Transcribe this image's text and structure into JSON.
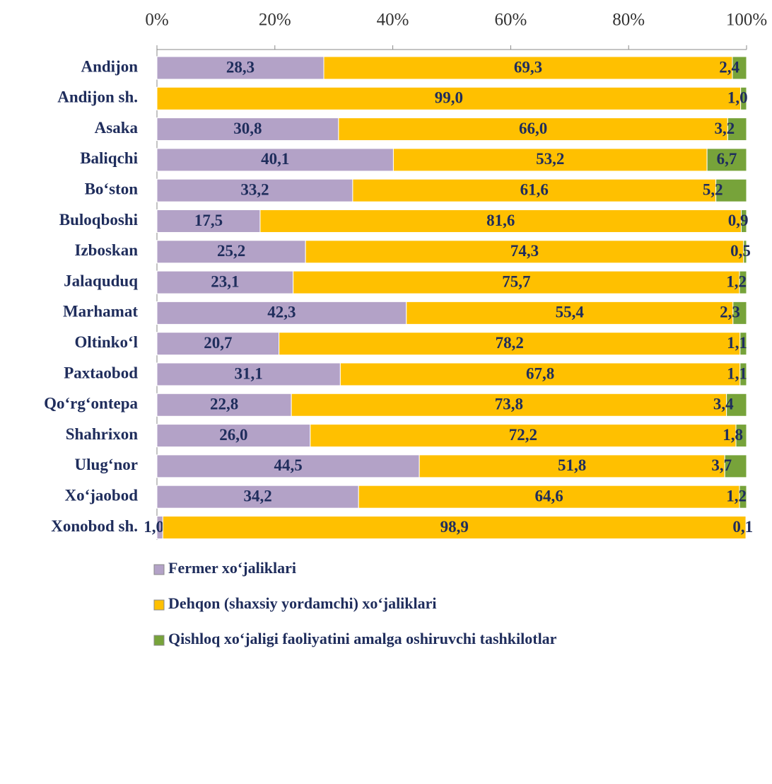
{
  "chart_data": {
    "type": "stacked-bar-horizontal",
    "categories": [
      "Andijon",
      "Andijon sh.",
      "Asaka",
      "Baliqchi",
      "Bo‘ston",
      "Buloqboshi",
      "Izboskan",
      "Jalaquduq",
      "Marhamat",
      "Oltinko‘l",
      "Paxtaobod",
      "Qo‘rg‘ontepa",
      "Shahrixon",
      "Ulug‘nor",
      "Xo‘jaobod",
      "Xonobod sh."
    ],
    "series": [
      {
        "name": "Fermer xo‘jaliklari",
        "color": "#b3a2c7",
        "values": [
          28.3,
          null,
          30.8,
          40.1,
          33.2,
          17.5,
          25.2,
          23.1,
          42.3,
          20.7,
          31.1,
          22.8,
          26.0,
          44.5,
          34.2,
          1.0
        ],
        "value_labels": [
          "28,3",
          null,
          "30,8",
          "40,1",
          "33,2",
          "17,5",
          "25,2",
          "23,1",
          "42,3",
          "20,7",
          "31,1",
          "22,8",
          "26,0",
          "44,5",
          "34,2",
          "1,0"
        ]
      },
      {
        "name": "Dehqon (shaxsiy yordamchi) xo‘jaliklari",
        "color": "#ffc000",
        "values": [
          69.3,
          99.0,
          66.0,
          53.2,
          61.6,
          81.6,
          74.3,
          75.7,
          55.4,
          78.2,
          67.8,
          73.8,
          72.2,
          51.8,
          64.6,
          98.9
        ],
        "value_labels": [
          "69,3",
          "99,0",
          "66,0",
          "53,2",
          "61,6",
          "81,6",
          "74,3",
          "75,7",
          "55,4",
          "78,2",
          "67,8",
          "73,8",
          "72,2",
          "51,8",
          "64,6",
          "98,9"
        ]
      },
      {
        "name": "Qishloq xo‘jaligi faoliyatini amalga oshiruvchi tashkilotlar",
        "color": "#77a33a",
        "values": [
          2.4,
          1.0,
          3.2,
          6.7,
          5.2,
          0.9,
          0.5,
          1.2,
          2.3,
          1.1,
          1.1,
          3.4,
          1.8,
          3.7,
          1.2,
          0.1
        ],
        "value_labels": [
          "2,4",
          "1,0",
          "3,2",
          "6,7",
          "5,2",
          "0,9",
          "0,5",
          "1,2",
          "2,3",
          "1,1",
          "1,1",
          "3,4",
          "1,8",
          "3,7",
          "1,2",
          "0,1"
        ]
      }
    ],
    "xlim": [
      0,
      100
    ],
    "xticks": [
      {
        "value": 0,
        "label": "0%"
      },
      {
        "value": 20,
        "label": "20%"
      },
      {
        "value": 40,
        "label": "40%"
      },
      {
        "value": 60,
        "label": "60%"
      },
      {
        "value": 80,
        "label": "80%"
      },
      {
        "value": 100,
        "label": "100%"
      }
    ]
  }
}
